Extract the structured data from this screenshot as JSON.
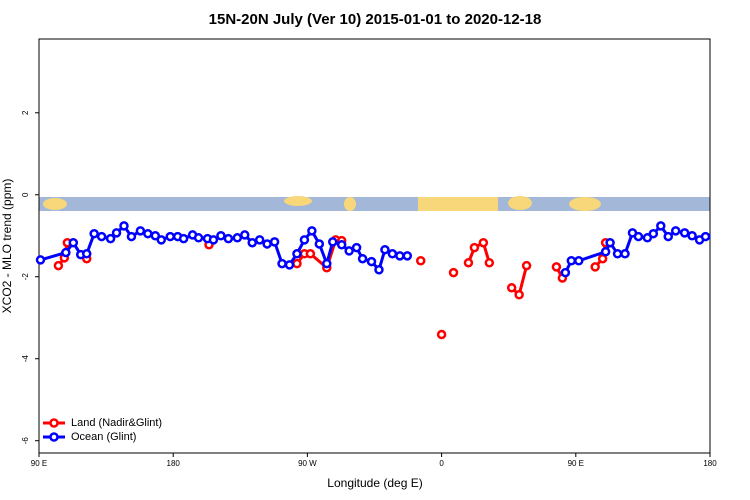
{
  "chart_data": {
    "type": "line",
    "title": "15N-20N July (Ver 10)   2015-01-01 to 2020-12-18",
    "x_label": "Longitude (deg E)",
    "y_label": "XCO2 - MLO trend (ppm)",
    "xlim": [
      90,
      540
    ],
    "ylim": [
      -6.3,
      3.8
    ],
    "xticks": [
      {
        "value": 90,
        "label": "90 E"
      },
      {
        "value": 180,
        "label": "180"
      },
      {
        "value": 270,
        "label": "90 W"
      },
      {
        "value": 360,
        "label": "0"
      },
      {
        "value": 450,
        "label": "90 E"
      },
      {
        "value": 540,
        "label": "180"
      }
    ],
    "yticks": [
      -6,
      -4,
      -2,
      0,
      2
    ],
    "legend": "bottom-left",
    "series": [
      {
        "name": "Land (Nadir&Glint)",
        "color": "#ff0000",
        "x": [
          103,
          107,
          109,
          115,
          122,
          160,
          204,
          230,
          263,
          268,
          272,
          283,
          289,
          293,
          320,
          346,
          353,
          360,
          364,
          368,
          373,
          378,
          382,
          388,
          392,
          400,
          407,
          412,
          417,
          427,
          437,
          441,
          452,
          463,
          468,
          470
        ],
        "values": [
          -1.73,
          -1.54,
          -1.17,
          null,
          -1.56,
          null,
          -1.22,
          null,
          -1.68,
          -1.44,
          -1.44,
          -1.78,
          -1.1,
          -1.12,
          null,
          -1.61,
          null,
          -3.41,
          null,
          -1.9,
          null,
          -1.66,
          -1.29,
          -1.17,
          -1.66,
          null,
          -2.27,
          -2.44,
          -1.73,
          null,
          -1.76,
          -2.03,
          null,
          -1.76,
          -1.56,
          -1.17
        ]
      },
      {
        "name": "Ocean (Glint)",
        "color": "#0000ff",
        "x": [
          91,
          108,
          113,
          118,
          122,
          127,
          132,
          138,
          142,
          147,
          152,
          158,
          163,
          168,
          172,
          178,
          183,
          187,
          193,
          197,
          203,
          207,
          212,
          217,
          223,
          228,
          233,
          238,
          243,
          248,
          253,
          258,
          263,
          268,
          273,
          278,
          283,
          287,
          293,
          298,
          303,
          307,
          313,
          318,
          322,
          327,
          332,
          337,
          390,
          443,
          447,
          452,
          470,
          473,
          478,
          483,
          488,
          492,
          498,
          502,
          507,
          512,
          517,
          523,
          528,
          533,
          537
        ],
        "values": [
          -1.59,
          -1.41,
          -1.17,
          -1.46,
          -1.44,
          -0.95,
          -1.02,
          -1.07,
          -0.93,
          -0.76,
          -1.02,
          -0.88,
          -0.95,
          -1.0,
          -1.1,
          -1.02,
          -1.02,
          -1.07,
          -0.98,
          -1.05,
          -1.07,
          -1.1,
          -1.0,
          -1.07,
          -1.05,
          -0.98,
          -1.17,
          -1.1,
          -1.2,
          -1.15,
          -1.68,
          -1.71,
          -1.44,
          -1.1,
          -0.88,
          -1.2,
          -1.68,
          -1.15,
          -1.22,
          -1.37,
          -1.29,
          -1.56,
          -1.63,
          -1.83,
          -1.34,
          -1.44,
          -1.49,
          -1.49,
          null,
          -1.9,
          -1.61,
          -1.61,
          -1.39,
          -1.17,
          -1.44,
          -1.44,
          -0.93,
          -1.02,
          -1.05,
          -0.95,
          -0.76,
          -1.02,
          -0.88,
          -0.93,
          -1.0,
          -1.1,
          -1.02
        ]
      }
    ]
  }
}
